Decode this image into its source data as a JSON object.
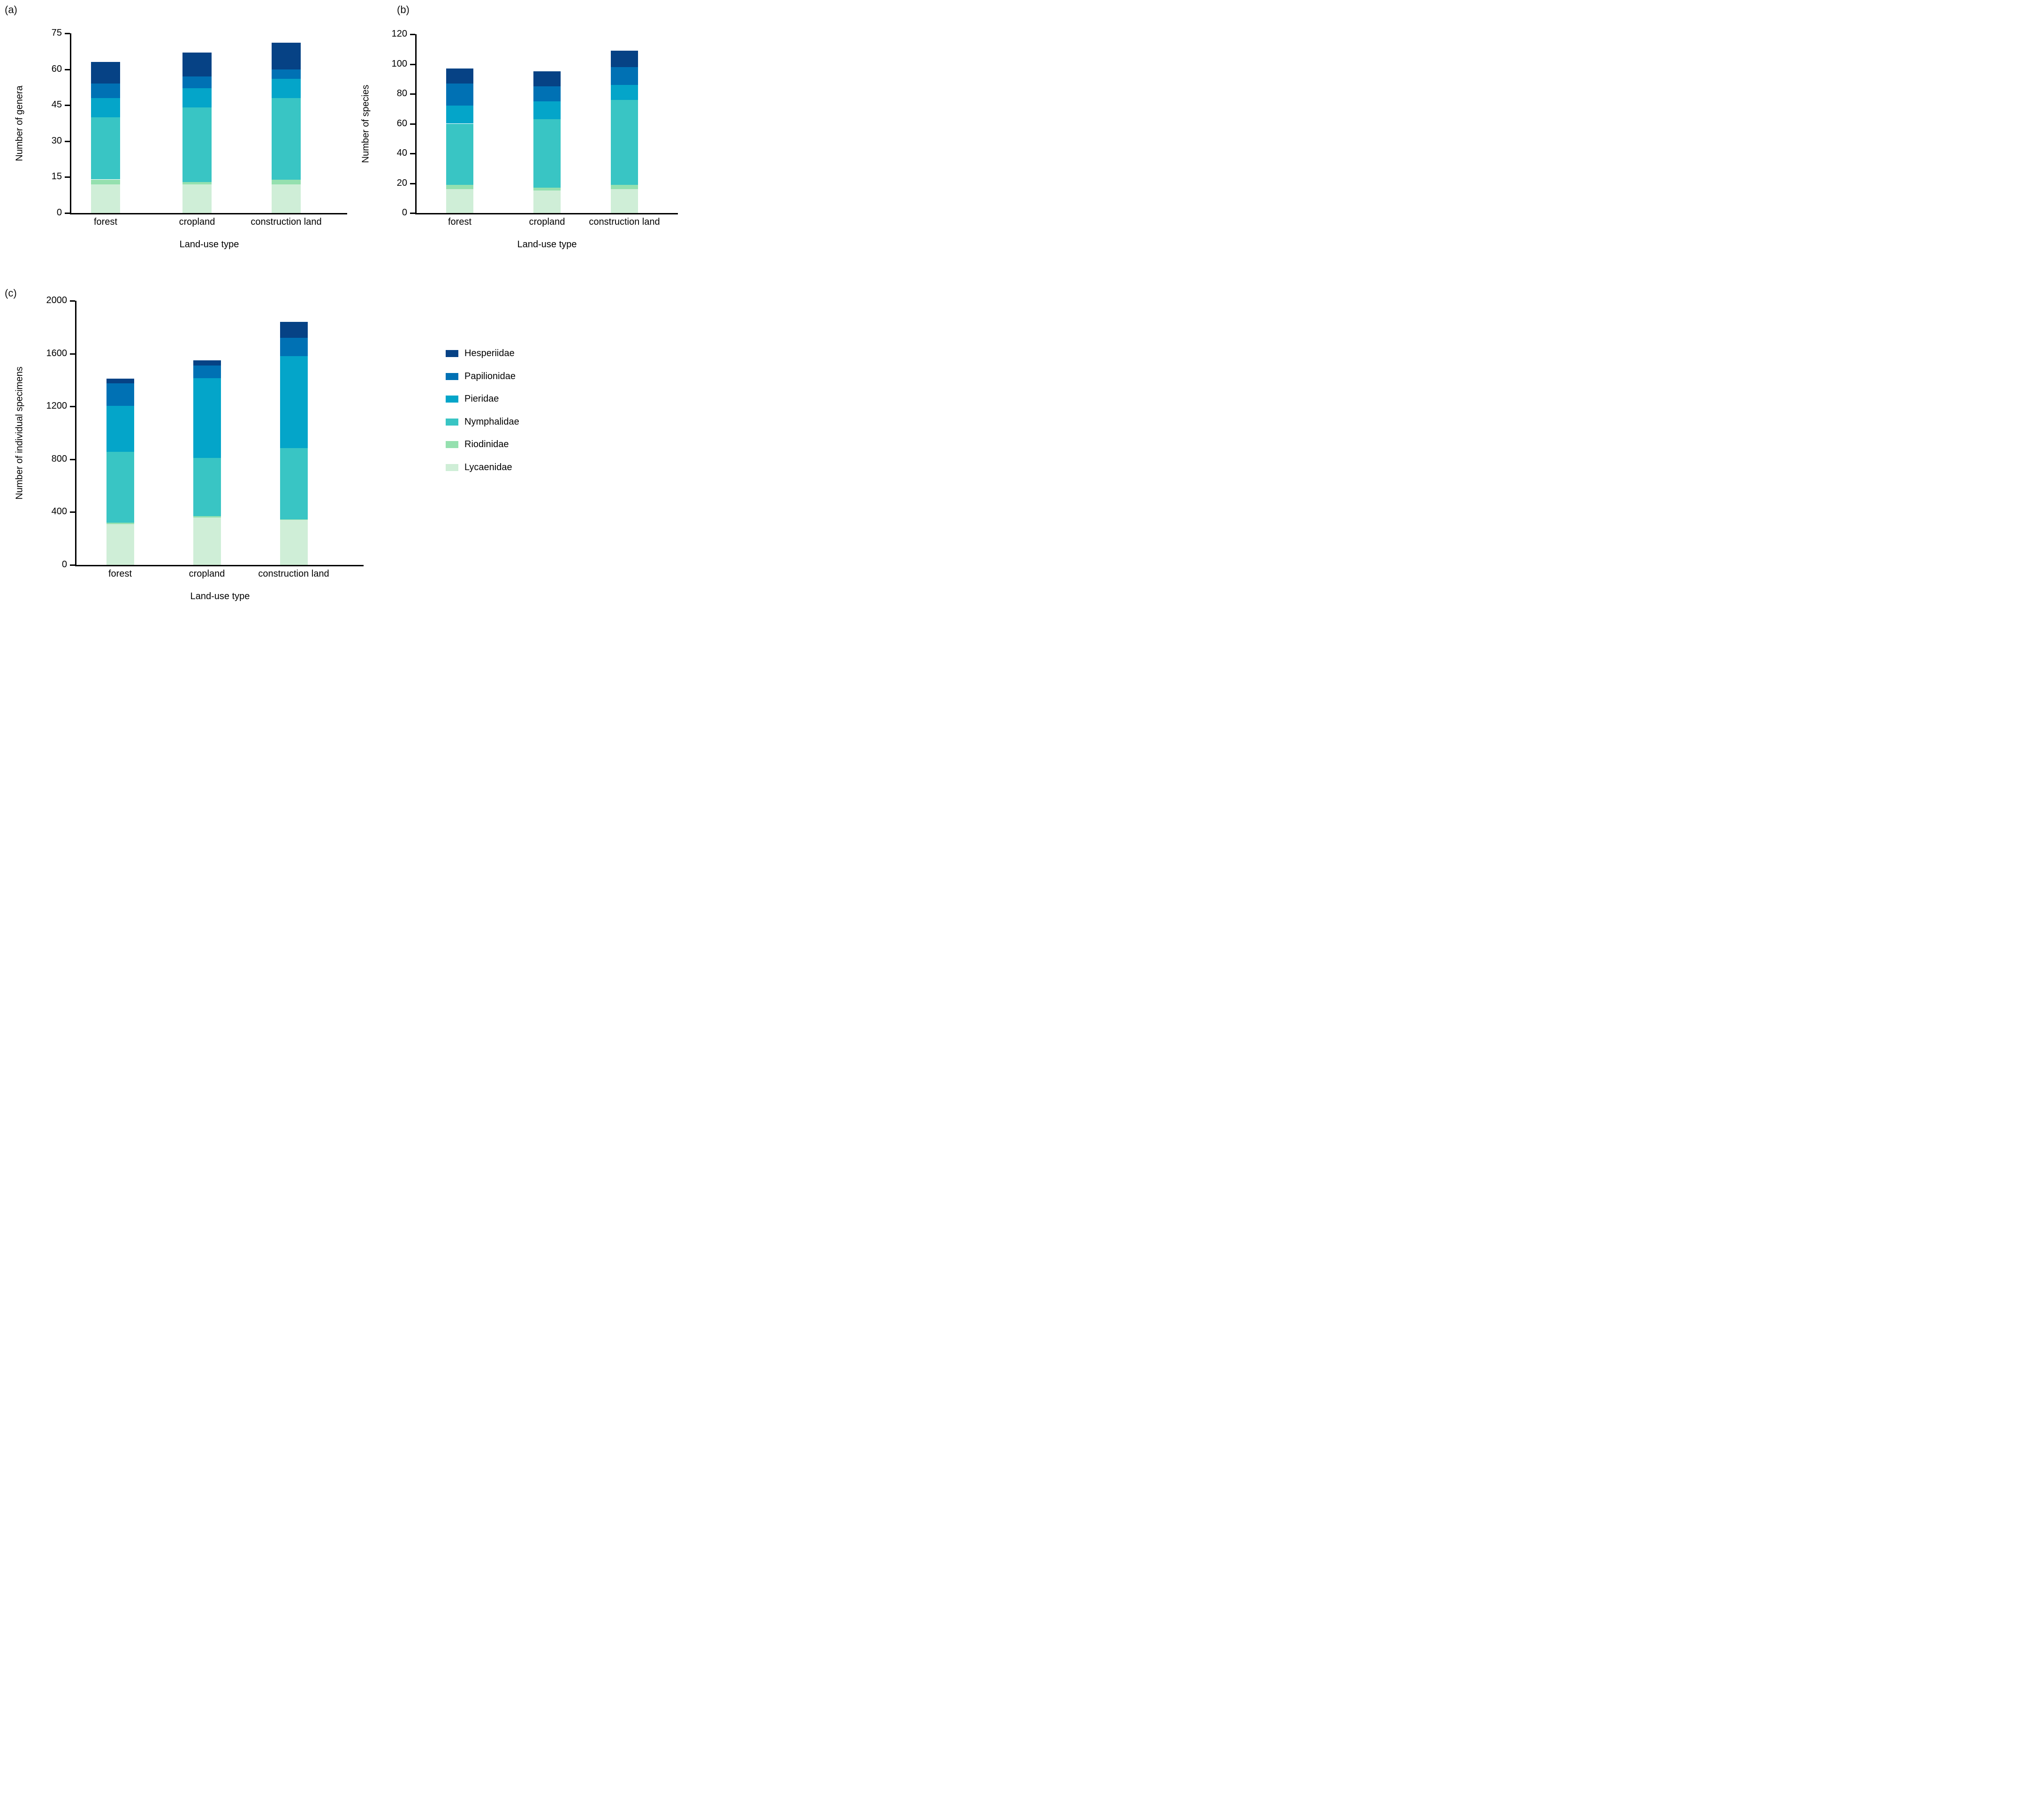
{
  "figure": {
    "background": "#ffffff",
    "panel_letters": [
      "(a)",
      "(b)",
      "(c)"
    ]
  },
  "legend": {
    "position": "right-middle",
    "items": [
      {
        "label": "Hesperiidae",
        "color": "#064285"
      },
      {
        "label": "Papilionidae",
        "color": "#0071b4"
      },
      {
        "label": "Pieridae",
        "color": "#04a5c9"
      },
      {
        "label": "Nymphalidae",
        "color": "#39c5c4"
      },
      {
        "label": "Riodinidae",
        "color": "#95e0af"
      },
      {
        "label": "Lycaenidae",
        "color": "#cfeed7"
      }
    ]
  },
  "chart_data": [
    {
      "type": "bar",
      "stacked": true,
      "panel": "(a)",
      "title": "",
      "xlabel": "Land-use type",
      "ylabel": "Number of genera",
      "categories": [
        "forest",
        "cropland",
        "construction land"
      ],
      "ylim": [
        0,
        75
      ],
      "ytick_step": 15,
      "grid": false,
      "series": [
        {
          "name": "Lycaenidae",
          "values": [
            12,
            12,
            12
          ]
        },
        {
          "name": "Riodinidae",
          "values": [
            2,
            1,
            2
          ]
        },
        {
          "name": "Nymphalidae",
          "values": [
            26,
            31,
            34
          ]
        },
        {
          "name": "Pieridae",
          "values": [
            8,
            8,
            8
          ]
        },
        {
          "name": "Papilionidae",
          "values": [
            6,
            5,
            4
          ]
        },
        {
          "name": "Hesperiidae",
          "values": [
            9,
            10,
            11
          ]
        }
      ],
      "totals": [
        63,
        67,
        71
      ]
    },
    {
      "type": "bar",
      "stacked": true,
      "panel": "(b)",
      "title": "",
      "xlabel": "Land-use type",
      "ylabel": "Number of species",
      "categories": [
        "forest",
        "cropland",
        "construction land"
      ],
      "ylim": [
        0,
        120
      ],
      "ytick_step": 20,
      "grid": false,
      "series": [
        {
          "name": "Lycaenidae",
          "values": [
            16,
            15,
            16
          ]
        },
        {
          "name": "Riodinidae",
          "values": [
            3,
            2,
            3
          ]
        },
        {
          "name": "Nymphalidae",
          "values": [
            41,
            46,
            57
          ]
        },
        {
          "name": "Pieridae",
          "values": [
            12,
            12,
            10
          ]
        },
        {
          "name": "Papilionidae",
          "values": [
            15,
            10,
            12
          ]
        },
        {
          "name": "Hesperiidae",
          "values": [
            10,
            10,
            11
          ]
        }
      ],
      "totals": [
        97,
        95,
        109
      ]
    },
    {
      "type": "bar",
      "stacked": true,
      "panel": "(c)",
      "title": "",
      "xlabel": "Land-use type",
      "ylabel": "Number of individual specimens",
      "categories": [
        "forest",
        "cropland",
        "construction land"
      ],
      "ylim": [
        0,
        2000
      ],
      "ytick_step": 400,
      "grid": false,
      "series": [
        {
          "name": "Lycaenidae",
          "values": [
            310,
            360,
            340
          ]
        },
        {
          "name": "Riodinidae",
          "values": [
            10,
            10,
            5
          ]
        },
        {
          "name": "Nymphalidae",
          "values": [
            535,
            440,
            540
          ]
        },
        {
          "name": "Pieridae",
          "values": [
            350,
            605,
            695
          ]
        },
        {
          "name": "Papilionidae",
          "values": [
            170,
            95,
            140
          ]
        },
        {
          "name": "Hesperiidae",
          "values": [
            35,
            40,
            120
          ]
        }
      ],
      "totals": [
        1410,
        1550,
        1840
      ]
    }
  ]
}
